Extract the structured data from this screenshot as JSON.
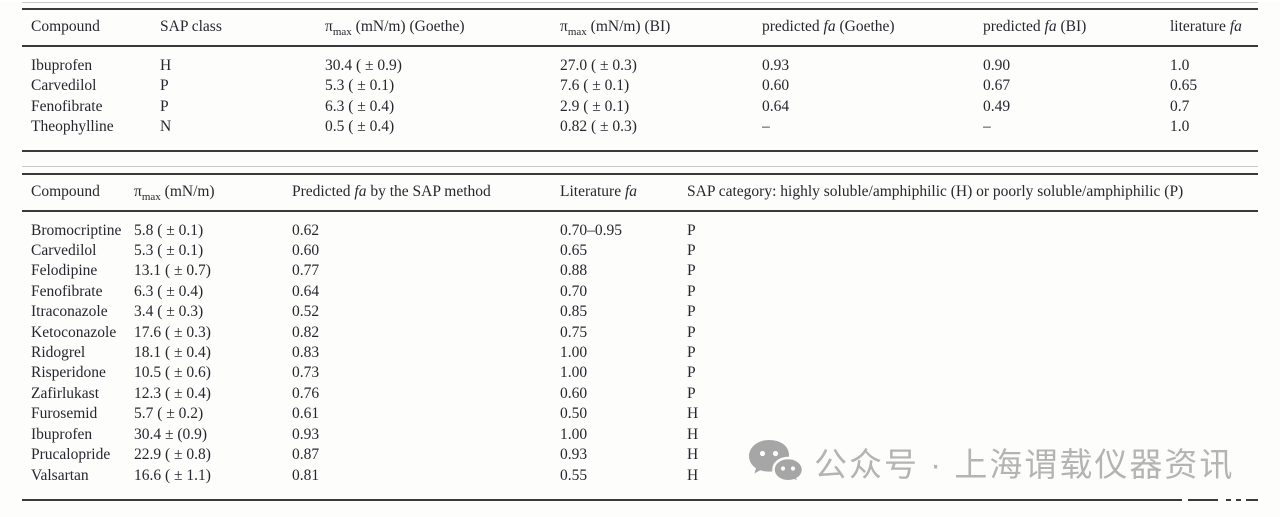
{
  "table1": {
    "columns": [
      [
        {
          "t": "Compound"
        }
      ],
      [
        {
          "t": "SAP class"
        }
      ],
      [
        {
          "t": "π"
        },
        {
          "t": "max",
          "s": "sub"
        },
        {
          "t": " (mN/m) (Goethe)"
        }
      ],
      [
        {
          "t": "π"
        },
        {
          "t": "max",
          "s": "sub"
        },
        {
          "t": " (mN/m) (BI)"
        }
      ],
      [
        {
          "t": "predicted "
        },
        {
          "t": "fa",
          "s": "i"
        },
        {
          "t": " (Goethe)"
        }
      ],
      [
        {
          "t": "predicted "
        },
        {
          "t": "fa",
          "s": "i"
        },
        {
          "t": " (BI)"
        }
      ],
      [
        {
          "t": "literature "
        },
        {
          "t": "fa",
          "s": "i"
        }
      ]
    ],
    "rows": [
      [
        "Ibuprofen",
        "H",
        "30.4 ( ± 0.9)",
        "27.0 ( ± 0.3)",
        "0.93",
        "0.90",
        "1.0"
      ],
      [
        "Carvedilol",
        "P",
        "5.3 ( ± 0.1)",
        "7.6 ( ± 0.1)",
        "0.60",
        "0.67",
        "0.65"
      ],
      [
        "Fenofibrate",
        "P",
        "6.3 ( ± 0.4)",
        "2.9 ( ± 0.1)",
        "0.64",
        "0.49",
        "0.7"
      ],
      [
        "Theophylline",
        "N",
        "0.5 ( ± 0.4)",
        "0.82 ( ± 0.3)",
        "–",
        "–",
        "1.0"
      ]
    ]
  },
  "table2": {
    "columns": [
      [
        {
          "t": "Compound"
        }
      ],
      [
        {
          "t": "π"
        },
        {
          "t": "max",
          "s": "sub"
        },
        {
          "t": " (mN/m)"
        }
      ],
      [
        {
          "t": "Predicted "
        },
        {
          "t": "fa",
          "s": "i"
        },
        {
          "t": " by the SAP method"
        }
      ],
      [
        {
          "t": "Literature "
        },
        {
          "t": "fa",
          "s": "i"
        }
      ],
      [
        {
          "t": "SAP category: highly soluble/amphiphilic (H) or poorly soluble/amphiphilic (P)"
        }
      ]
    ],
    "rows": [
      [
        "Bromocriptine",
        "5.8 ( ± 0.1)",
        "0.62",
        "0.70–0.95",
        "P"
      ],
      [
        "Carvedilol",
        "5.3 ( ± 0.1)",
        "0.60",
        "0.65",
        "P"
      ],
      [
        "Felodipine",
        "13.1 ( ± 0.7)",
        "0.77",
        "0.88",
        "P"
      ],
      [
        "Fenofibrate",
        "6.3 ( ± 0.4)",
        "0.64",
        "0.70",
        "P"
      ],
      [
        "Itraconazole",
        "3.4 ( ± 0.3)",
        "0.52",
        "0.85",
        "P"
      ],
      [
        "Ketoconazole",
        "17.6 ( ± 0.3)",
        "0.82",
        "0.75",
        "P"
      ],
      [
        "Ridogrel",
        "18.1 ( ± 0.4)",
        "0.83",
        "1.00",
        "P"
      ],
      [
        "Risperidone",
        "10.5 ( ± 0.6)",
        "0.73",
        "1.00",
        "P"
      ],
      [
        "Zafirlukast",
        "12.3 ( ± 0.4)",
        "0.76",
        "0.60",
        "P"
      ],
      [
        "Furosemid",
        "5.7 ( ± 0.2)",
        "0.61",
        "0.50",
        "H"
      ],
      [
        "Ibuprofen",
        "30.4 ± (0.9)",
        "0.93",
        "1.00",
        "H"
      ],
      [
        "Prucalopride",
        "22.9 ( ± 0.8)",
        "0.87",
        "0.93",
        "H"
      ],
      [
        "Valsartan",
        "16.6 ( ± 1.1)",
        "0.81",
        "0.55",
        "H"
      ]
    ]
  },
  "watermark": {
    "icon": "wechat-icon",
    "text": "公众号 · 上海谓载仪器资讯",
    "color": "#b4b4b4"
  },
  "rule_color": "#3a3a3c"
}
